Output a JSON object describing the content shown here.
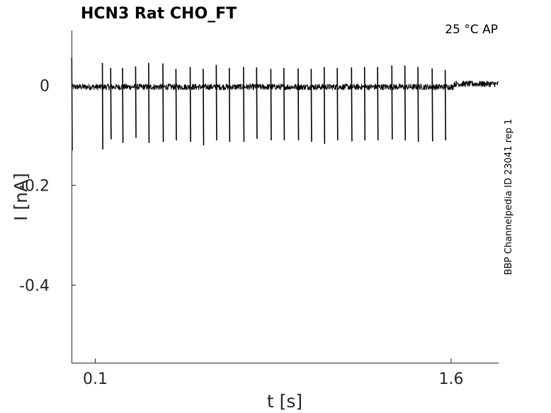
{
  "chart_data": {
    "type": "line",
    "title": "HCN3  Rat  CHO_FT",
    "condition": "25 °C  AP",
    "side_label": "BBP Channelpedia ID 23041 rep 1",
    "xlabel": "t [s]",
    "ylabel": "I [nA]",
    "xlim": [
      0.0,
      1.8
    ],
    "ylim": [
      -0.555,
      0.11
    ],
    "x_ticks": [
      {
        "value": 0.1,
        "label": "0.1"
      },
      {
        "value": 1.6,
        "label": "1.6"
      }
    ],
    "y_ticks": [
      {
        "value": 0,
        "label": "0"
      },
      {
        "value": -0.2,
        "label": "-0.2"
      },
      {
        "value": -0.4,
        "label": "-0.4"
      }
    ],
    "grid": false,
    "series": [
      {
        "color": "#000000",
        "baseline_nA": -0.003,
        "baseline_noise_nA": 0.006,
        "late_baseline_nA": 0.003,
        "late_baseline_start_s": 1.61,
        "spike_times_s": [
          0.13,
          0.165,
          0.215,
          0.27,
          0.325,
          0.385,
          0.44,
          0.5,
          0.555,
          0.61,
          0.665,
          0.725,
          0.78,
          0.84,
          0.895,
          0.955,
          1.01,
          1.065,
          1.12,
          1.18,
          1.235,
          1.29,
          1.35,
          1.405,
          1.46,
          1.52,
          1.575
        ],
        "spike_peaks_nA": [
          0.045,
          0.035,
          0.035,
          0.038,
          0.045,
          0.044,
          0.033,
          0.037,
          0.033,
          0.041,
          0.035,
          0.037,
          0.036,
          0.033,
          0.035,
          0.034,
          0.033,
          0.037,
          0.035,
          0.036,
          0.037,
          0.037,
          0.04,
          0.04,
          0.037,
          0.034,
          0.031
        ],
        "spike_troughs_nA": [
          -0.128,
          -0.108,
          -0.115,
          -0.105,
          -0.115,
          -0.113,
          -0.11,
          -0.113,
          -0.12,
          -0.11,
          -0.113,
          -0.113,
          -0.107,
          -0.11,
          -0.11,
          -0.11,
          -0.113,
          -0.117,
          -0.11,
          -0.112,
          -0.11,
          -0.11,
          -0.108,
          -0.11,
          -0.113,
          -0.112,
          -0.11
        ],
        "onset_transient": {
          "t_s": 0.0,
          "peak_nA": 0.055,
          "trough_nA": -0.13
        }
      }
    ]
  }
}
